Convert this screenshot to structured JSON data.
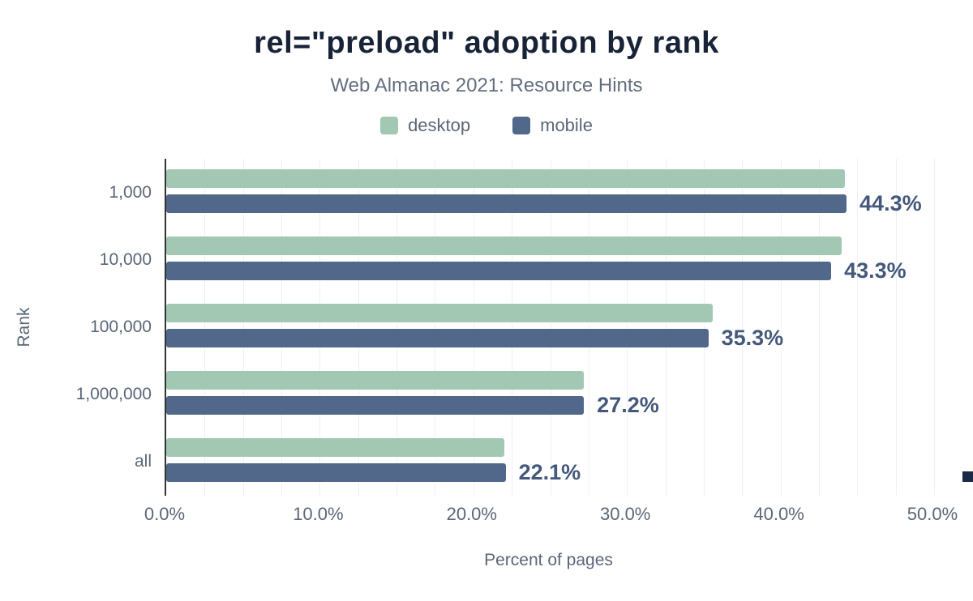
{
  "chart_data": {
    "type": "bar",
    "orientation": "horizontal",
    "title": "rel=\"preload\" adoption by rank",
    "subtitle": "Web Almanac 2021: Resource Hints",
    "categories": [
      "1,000",
      "10,000",
      "100,000",
      "1,000,000",
      "all"
    ],
    "series": [
      {
        "name": "desktop",
        "color": "#a2c8b3",
        "values": [
          44.2,
          44.0,
          35.6,
          27.2,
          22.0
        ]
      },
      {
        "name": "mobile",
        "color": "#52688a",
        "values": [
          44.3,
          43.3,
          35.3,
          27.2,
          22.1
        ]
      }
    ],
    "value_labels": [
      "44.3%",
      "43.3%",
      "35.3%",
      "27.2%",
      "22.1%"
    ],
    "xlabel": "Percent of pages",
    "ylabel": "Rank",
    "xlim": [
      0,
      50
    ],
    "xtick_values": [
      0,
      10,
      20,
      30,
      40,
      50
    ],
    "xticks": [
      "0.0%",
      "10.0%",
      "20.0%",
      "30.0%",
      "40.0%",
      "50.0%"
    ],
    "grid": "vertical",
    "grid_step": 2.5,
    "legend_position": "top-center"
  },
  "palette": {
    "title_text": "#182338",
    "muted_text": "#5b6678",
    "value_label_text": "#44587c",
    "axis_line": "#333333",
    "gridline": "#eef0f3",
    "brand_mark": "#1b2a47"
  }
}
